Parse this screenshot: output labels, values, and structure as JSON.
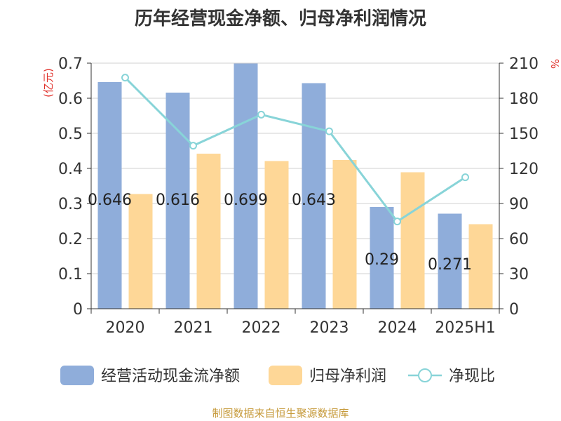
{
  "chart_data": {
    "type": "bar",
    "title": "历年经营现金净额、归母净利润情况",
    "categories": [
      "2020",
      "2021",
      "2022",
      "2023",
      "2024",
      "2025H1"
    ],
    "series": [
      {
        "name": "经营活动现金流净额",
        "type": "bar",
        "axis": "left",
        "color": "#8fadda",
        "values": [
          0.646,
          0.616,
          0.699,
          0.643,
          0.29,
          0.271
        ],
        "data_labels": [
          "0.646",
          "0.616",
          "0.699",
          "0.643",
          "0.29",
          "0.271"
        ]
      },
      {
        "name": "归母净利润",
        "type": "bar",
        "axis": "left",
        "color": "#fed797",
        "values": [
          0.327,
          0.442,
          0.421,
          0.424,
          0.389,
          0.241
        ]
      },
      {
        "name": "净现比",
        "type": "line",
        "axis": "right",
        "color": "#88d4d8",
        "values": [
          197.6,
          139.4,
          166.0,
          151.7,
          74.6,
          112.4
        ]
      }
    ],
    "y_left": {
      "label": "(亿元)",
      "ylim": [
        0,
        0.7
      ],
      "ticks": [
        "0",
        "0.1",
        "0.2",
        "0.3",
        "0.4",
        "0.5",
        "0.6",
        "0.7"
      ]
    },
    "y_right": {
      "label": "%",
      "ylim": [
        0,
        210
      ],
      "ticks": [
        "0",
        "30",
        "60",
        "90",
        "120",
        "150",
        "180",
        "210"
      ]
    },
    "grid": true,
    "legend_position": "bottom"
  },
  "source_note": "制图数据来自恒生聚源数据库"
}
